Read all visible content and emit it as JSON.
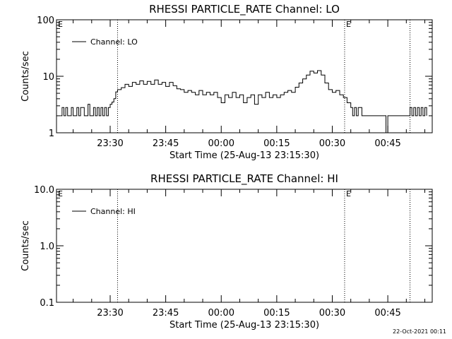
{
  "footer": {
    "timestamp": "22-Oct-2021 00:11"
  },
  "chart_data": [
    {
      "type": "line",
      "title": "RHESSI  PARTICLE_RATE  Channel: LO",
      "xlabel": "Start Time (25-Aug-13 23:15:30)",
      "ylabel": "Counts/sec",
      "yscale": "log",
      "ylim": [
        1,
        100
      ],
      "ytick_labels": [
        "1",
        "10",
        "100"
      ],
      "xlim": [
        "23:15:30",
        "00:57:00"
      ],
      "xtick_labels": [
        "23:30",
        "23:45",
        "00:00",
        "00:15",
        "00:30",
        "00:45"
      ],
      "legend": {
        "placement": "top-left",
        "entries": [
          "Channel: LO"
        ]
      },
      "markers": [
        {
          "time": "23:32:00",
          "label": ""
        },
        {
          "time": "00:33:20",
          "label": "E"
        },
        {
          "time": "00:51:00",
          "label": ""
        }
      ],
      "corner_label": "E",
      "series": [
        {
          "name": "Channel: LO",
          "points": [
            [
              "23:16:30",
              2
            ],
            [
              "23:17:00",
              2.8
            ],
            [
              "23:17:30",
              2
            ],
            [
              "23:18:00",
              2.8
            ],
            [
              "23:18:30",
              2
            ],
            [
              "23:19:30",
              2.8
            ],
            [
              "23:20:00",
              2
            ],
            [
              "23:21:00",
              2.8
            ],
            [
              "23:21:30",
              2
            ],
            [
              "23:22:00",
              2.8
            ],
            [
              "23:22:30",
              2.8
            ],
            [
              "23:23:00",
              2
            ],
            [
              "23:24:00",
              3.2
            ],
            [
              "23:24:30",
              2
            ],
            [
              "23:25:30",
              2.8
            ],
            [
              "23:26:00",
              2
            ],
            [
              "23:26:30",
              2.8
            ],
            [
              "23:27:00",
              2
            ],
            [
              "23:27:30",
              2.8
            ],
            [
              "23:28:00",
              2
            ],
            [
              "23:28:30",
              2.8
            ],
            [
              "23:29:00",
              2
            ],
            [
              "23:29:30",
              2.8
            ],
            [
              "23:30:00",
              3.2
            ],
            [
              "23:30:30",
              3.5
            ],
            [
              "23:31:00",
              4
            ],
            [
              "23:31:30",
              5.3
            ],
            [
              "23:32:00",
              5.8
            ],
            [
              "23:33:00",
              6.3
            ],
            [
              "23:34:00",
              7.2
            ],
            [
              "23:35:00",
              6.6
            ],
            [
              "23:36:00",
              7.8
            ],
            [
              "23:37:00",
              7.2
            ],
            [
              "23:38:00",
              8.3
            ],
            [
              "23:39:00",
              7.2
            ],
            [
              "23:40:00",
              8.1
            ],
            [
              "23:41:00",
              7.2
            ],
            [
              "23:42:00",
              8.6
            ],
            [
              "23:43:00",
              7.2
            ],
            [
              "23:44:00",
              7.8
            ],
            [
              "23:45:00",
              6.6
            ],
            [
              "23:46:00",
              7.8
            ],
            [
              "23:47:00",
              6.8
            ],
            [
              "23:48:00",
              6
            ],
            [
              "23:49:00",
              5.8
            ],
            [
              "23:50:00",
              5.2
            ],
            [
              "23:51:00",
              5.6
            ],
            [
              "23:52:00",
              5.2
            ],
            [
              "23:53:00",
              4.7
            ],
            [
              "23:54:00",
              5.6
            ],
            [
              "23:55:00",
              4.7
            ],
            [
              "23:56:00",
              5.2
            ],
            [
              "23:57:00",
              4.7
            ],
            [
              "23:58:00",
              5.2
            ],
            [
              "23:59:00",
              4.2
            ],
            [
              "00:00:00",
              3.4
            ],
            [
              "00:01:00",
              4.7
            ],
            [
              "00:02:00",
              4.2
            ],
            [
              "00:03:00",
              5.2
            ],
            [
              "00:04:00",
              4.2
            ],
            [
              "00:05:00",
              4.7
            ],
            [
              "00:06:00",
              3.4
            ],
            [
              "00:07:00",
              4.2
            ],
            [
              "00:08:00",
              4.7
            ],
            [
              "00:09:00",
              3.2
            ],
            [
              "00:10:00",
              4.7
            ],
            [
              "00:11:00",
              4.2
            ],
            [
              "00:12:00",
              5.2
            ],
            [
              "00:13:00",
              4.2
            ],
            [
              "00:14:00",
              4.7
            ],
            [
              "00:15:00",
              4.2
            ],
            [
              "00:16:00",
              4.7
            ],
            [
              "00:17:00",
              5.2
            ],
            [
              "00:18:00",
              5.6
            ],
            [
              "00:19:00",
              5.2
            ],
            [
              "00:20:00",
              6.4
            ],
            [
              "00:21:00",
              7.6
            ],
            [
              "00:22:00",
              9
            ],
            [
              "00:23:00",
              10.5
            ],
            [
              "00:24:00",
              12.3
            ],
            [
              "00:25:00",
              11.4
            ],
            [
              "00:26:00",
              12.6
            ],
            [
              "00:27:00",
              10.5
            ],
            [
              "00:28:00",
              7.6
            ],
            [
              "00:29:00",
              5.8
            ],
            [
              "00:30:00",
              5.2
            ],
            [
              "00:31:00",
              5.6
            ],
            [
              "00:32:00",
              4.7
            ],
            [
              "00:33:00",
              4.2
            ],
            [
              "00:34:00",
              3.4
            ],
            [
              "00:35:00",
              2.8
            ],
            [
              "00:35:30",
              2
            ],
            [
              "00:36:00",
              2.8
            ],
            [
              "00:36:30",
              2
            ],
            [
              "00:37:00",
              2.8
            ],
            [
              "00:38:00",
              2
            ],
            [
              "00:44:00",
              2
            ],
            [
              "00:44:30",
              1
            ],
            [
              "00:45:00",
              2
            ],
            [
              "00:50:30",
              2
            ],
            [
              "00:51:00",
              2.8
            ],
            [
              "00:51:30",
              2
            ],
            [
              "00:52:00",
              2.8
            ],
            [
              "00:52:30",
              2
            ],
            [
              "00:53:00",
              2.8
            ],
            [
              "00:53:30",
              2
            ],
            [
              "00:54:00",
              2.8
            ],
            [
              "00:54:30",
              2
            ],
            [
              "00:55:00",
              2.8
            ],
            [
              "00:55:30",
              2
            ]
          ]
        }
      ]
    },
    {
      "type": "line",
      "title": "RHESSI  PARTICLE_RATE  Channel: HI",
      "xlabel": "Start Time (25-Aug-13 23:15:30)",
      "ylabel": "Counts/sec",
      "yscale": "log",
      "ylim": [
        0.1,
        10
      ],
      "ytick_labels": [
        "0.1",
        "1.0",
        "10.0"
      ],
      "xlim": [
        "23:15:30",
        "00:57:00"
      ],
      "xtick_labels": [
        "23:30",
        "23:45",
        "00:00",
        "00:15",
        "00:30",
        "00:45"
      ],
      "legend": {
        "placement": "top-left",
        "entries": [
          "Channel: HI"
        ]
      },
      "markers": [
        {
          "time": "23:32:00",
          "label": ""
        },
        {
          "time": "00:33:20",
          "label": "E"
        },
        {
          "time": "00:51:00",
          "label": ""
        }
      ],
      "corner_label": "E",
      "series": [
        {
          "name": "Channel: HI",
          "points": []
        }
      ]
    }
  ]
}
